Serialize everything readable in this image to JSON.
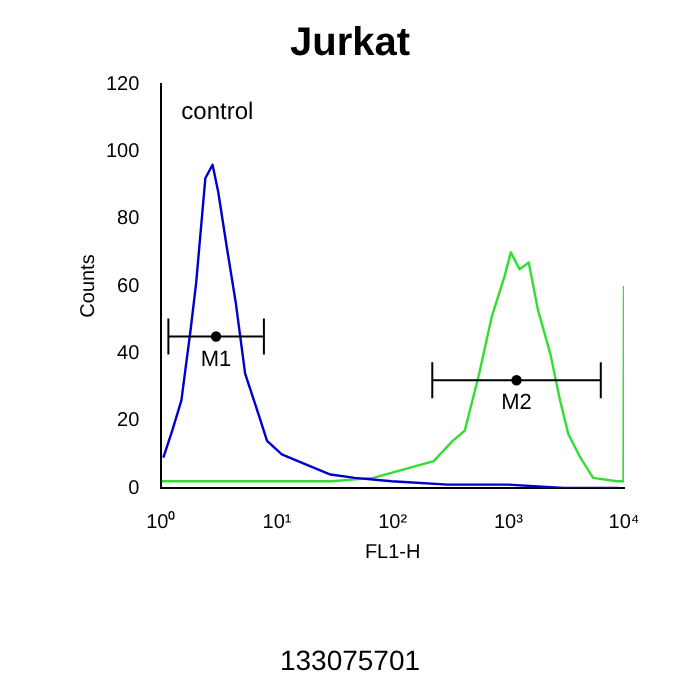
{
  "chart_data": {
    "type": "line",
    "title": "Jurkat",
    "xlabel": "FL1-H",
    "ylabel": "Counts",
    "log": "x",
    "xlim": [
      1,
      10000
    ],
    "xticks": [
      {
        "value": 1,
        "label": "10⁰"
      },
      {
        "value": 10,
        "label": "10¹"
      },
      {
        "value": 100,
        "label": "10²"
      },
      {
        "value": 1000,
        "label": "10³"
      },
      {
        "value": 10000,
        "label": "10⁴"
      }
    ],
    "ylim": [
      0,
      120
    ],
    "yticks": [
      0,
      20,
      40,
      60,
      80,
      100,
      120
    ],
    "grid": false,
    "legend": false,
    "marker": "none",
    "line_style": "solid",
    "series": [
      {
        "color": "#0000cc",
        "x": [
          1.04,
          1.24,
          1.49,
          1.79,
          2.0,
          2.4,
          2.77,
          3.1,
          3.7,
          4.4,
          5.3,
          6.9,
          8.2,
          11,
          17.7,
          29,
          47,
          98,
          300,
          1000,
          3000,
          9000
        ],
        "values": [
          9,
          17,
          26,
          47,
          61,
          92,
          96,
          88,
          71,
          55,
          34,
          22,
          14,
          10,
          7,
          4,
          3,
          2,
          1,
          1,
          0,
          0
        ]
      },
      {
        "color": "#33dd33",
        "x": [
          1.01,
          3,
          10,
          30,
          68,
          226,
          330,
          420,
          560,
          720,
          930,
          1050,
          1250,
          1500,
          1800,
          2300,
          2800,
          3300,
          4200,
          5400,
          8700,
          9900,
          10000
        ],
        "values": [
          2,
          2,
          2,
          2,
          3,
          8,
          14,
          17,
          34,
          51,
          63,
          70,
          65,
          67,
          53,
          40,
          26,
          16,
          9,
          3,
          2,
          2,
          60
        ]
      },
      {
        "name": "M1",
        "type": "scatter",
        "marker": "circle",
        "color": "#000000",
        "x": [
          2.97
        ],
        "values": [
          45
        ],
        "xerrors": [
          [
            1.15,
            7.7
          ]
        ]
      },
      {
        "name": "M2",
        "type": "scatter",
        "marker": "circle",
        "color": "#000000",
        "x": [
          1177
        ],
        "values": [
          32
        ],
        "xerrors": [
          [
            220,
            6300
          ]
        ]
      }
    ],
    "annotations": [
      "control",
      "133075701"
    ]
  }
}
